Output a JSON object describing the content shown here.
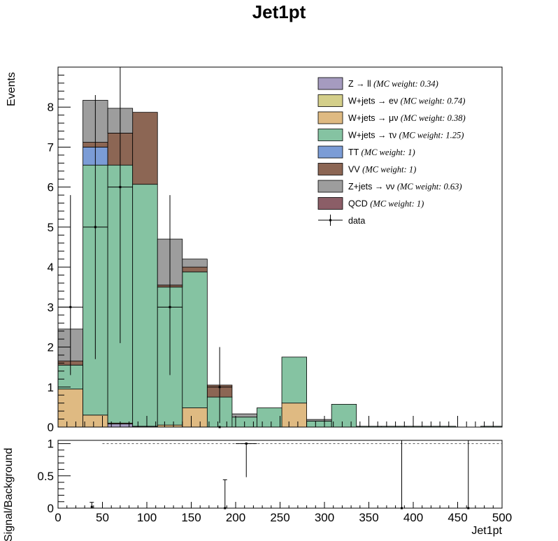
{
  "chart_data": {
    "type": "bar",
    "title": "Jet1pt",
    "xlabel": "Jet1pt",
    "ylabel": "Events",
    "ratio_ylabel": "Signal/Background",
    "xlim": [
      0,
      500
    ],
    "ylim": [
      0,
      9
    ],
    "ratio_ylim": [
      0,
      1.05
    ],
    "x_ticks": [
      0,
      50,
      100,
      150,
      200,
      250,
      300,
      350,
      400,
      450,
      500
    ],
    "y_ticks": [
      0,
      1,
      2,
      3,
      4,
      5,
      6,
      7,
      8
    ],
    "ratio_y_ticks": [
      "0",
      "0.5",
      "1"
    ],
    "bin_edges": [
      0,
      28,
      56,
      84,
      112,
      140,
      168,
      196,
      224,
      252,
      280,
      308,
      336,
      364,
      392,
      420,
      448,
      476,
      500
    ],
    "stack": [
      {
        "name": "Z → ll",
        "weight": "(MC weight: 0.34)",
        "color": "#a59bbf",
        "values": [
          0,
          0,
          0.08,
          0.02,
          0,
          0,
          0,
          0,
          0,
          0,
          0,
          0,
          0,
          0,
          0,
          0,
          0,
          0
        ]
      },
      {
        "name": "W+jets → eν",
        "weight": "(MC weight: 0.74)",
        "color": "#d4cf8a",
        "values": [
          0,
          0,
          0,
          0,
          0,
          0,
          0,
          0,
          0,
          0,
          0,
          0,
          0,
          0,
          0,
          0,
          0,
          0
        ]
      },
      {
        "name": "W+jets → μν",
        "weight": "(MC weight: 0.38)",
        "color": "#dfba82",
        "values": [
          0.95,
          0.3,
          0.02,
          0,
          0.05,
          0.48,
          0,
          0,
          0,
          0.6,
          0,
          0,
          0,
          0,
          0,
          0,
          0,
          0
        ]
      },
      {
        "name": "W+jets → τν",
        "weight": "(MC weight: 1.25)",
        "color": "#85c3a2",
        "values": [
          0.6,
          6.25,
          6.45,
          6.05,
          3.45,
          3.4,
          0.75,
          0.25,
          0.48,
          1.15,
          0.15,
          0.57,
          0.02,
          0.02,
          0.02,
          0.02,
          0,
          0.02
        ]
      },
      {
        "name": "TT",
        "weight": "(MC weight: 1)",
        "color": "#7b9cd6",
        "values": [
          0,
          0.45,
          0,
          0,
          0,
          0,
          0,
          0,
          0,
          0,
          0,
          0,
          0,
          0,
          0,
          0,
          0,
          0
        ]
      },
      {
        "name": "VV",
        "weight": "(MC weight: 1)",
        "color": "#8c6654",
        "values": [
          0.1,
          0.12,
          0.8,
          1.8,
          0.05,
          0.12,
          0.3,
          0,
          0,
          0,
          0,
          0,
          0,
          0,
          0,
          0,
          0,
          0
        ]
      },
      {
        "name": "Z+jets → νν",
        "weight": "(MC weight: 0.63)",
        "color": "#9d9d9d",
        "values": [
          0.8,
          1.05,
          0.62,
          0,
          1.15,
          0.2,
          0,
          0.08,
          0,
          0,
          0.04,
          0,
          0,
          0,
          0,
          0,
          0,
          0
        ]
      },
      {
        "name": "QCD",
        "weight": "(MC weight: 1)",
        "color": "#8b5e67",
        "values": [
          0,
          0,
          0,
          0,
          0,
          0,
          0,
          0,
          0,
          0,
          0,
          0,
          0,
          0,
          0,
          0,
          0,
          0
        ]
      }
    ],
    "data_series": {
      "name": "data",
      "points": [
        {
          "x": 14,
          "y": 3,
          "xerr": 14,
          "ylo": 1.3,
          "yhi": 5.8
        },
        {
          "x": 42,
          "y": 5,
          "xerr": 14,
          "ylo": 1.7,
          "yhi": 8.3
        },
        {
          "x": 70,
          "y": 6,
          "xerr": 14,
          "ylo": 2.1,
          "yhi": 9.0
        },
        {
          "x": 126,
          "y": 3,
          "xerr": 14,
          "ylo": 1.3,
          "yhi": 5.8
        },
        {
          "x": 182,
          "y": 0,
          "xerr": 0,
          "ylo": 0,
          "yhi": 0
        },
        {
          "x": 182,
          "y": 1,
          "xerr": 14,
          "ylo": 0.1,
          "yhi": 2.0
        }
      ]
    },
    "ratio_points": [
      {
        "x": 38,
        "y": 0.02,
        "yhi": 0.09,
        "xerr": 0
      },
      {
        "x": 188,
        "y": 0,
        "yhi": 0.44,
        "xerr": 0
      },
      {
        "x": 212,
        "y": 1,
        "ylo": 0.48,
        "yhi": 1,
        "xerr": 12
      },
      {
        "x": 387,
        "y": 0,
        "yhi": 1.05,
        "xerr": 0
      },
      {
        "x": 462,
        "y": 0,
        "yhi": 1.05,
        "xerr": 0
      }
    ],
    "ratio_reference": {
      "y": 1,
      "from_x": 50,
      "style": "dashed"
    },
    "legend_position": "top-right",
    "grid": false
  }
}
